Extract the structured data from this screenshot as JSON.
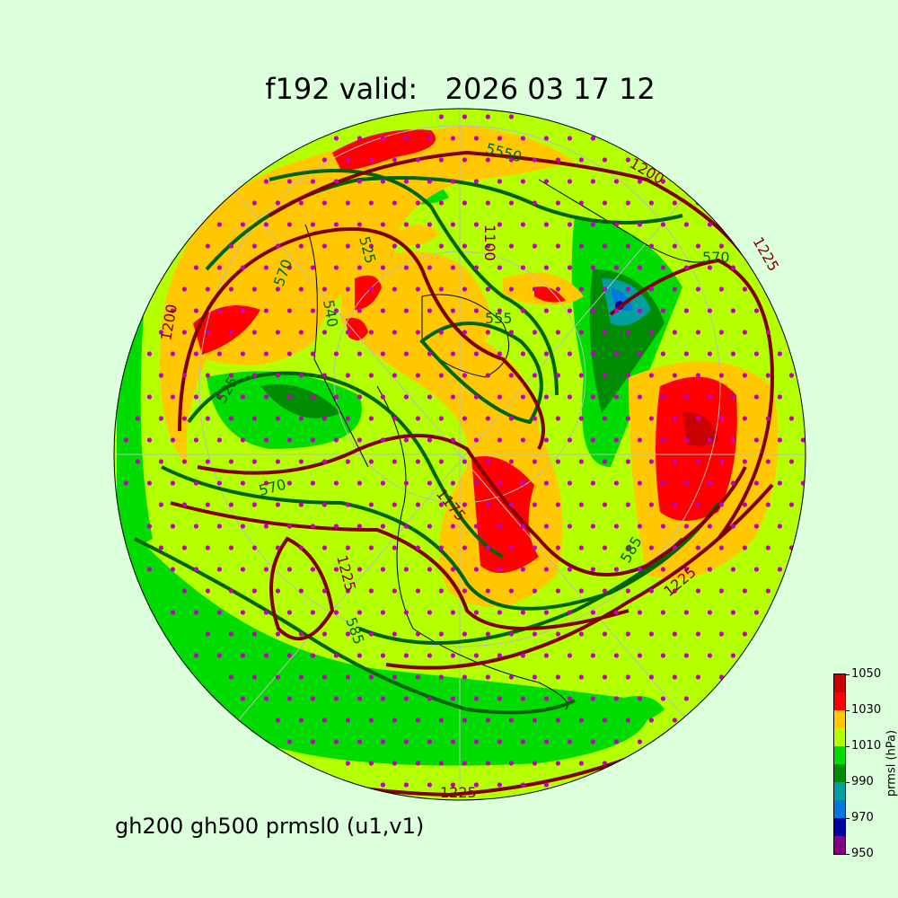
{
  "title": "f192 valid:   2026 03 17 12",
  "subtitle": "gh200 gh500 prmsl0 (u1,v1)",
  "colorbar": {
    "label": "prmsl (hPa)",
    "ticks": [
      "950",
      "970",
      "990",
      "1010",
      "1030",
      "1050"
    ],
    "levels": [
      950,
      960,
      970,
      980,
      990,
      1000,
      1010,
      1020,
      1030,
      1040,
      1050
    ],
    "colors": [
      "#800080",
      "#0000a0",
      "#0078e0",
      "#00a0a0",
      "#008c00",
      "#00dc00",
      "#b4ff00",
      "#ffc800",
      "#ff0000",
      "#c80000"
    ]
  },
  "map": {
    "projection": "orthographic north polar",
    "gh500_color": "#006400",
    "gh200_color": "#800000",
    "wind_dots_color": "#c000c0",
    "contour_labels": [
      {
        "text": "5550",
        "field": "gh500"
      },
      {
        "text": "1200",
        "field": "gh200"
      },
      {
        "text": "1100",
        "field": "gh200"
      },
      {
        "text": "525",
        "field": "gh500"
      },
      {
        "text": "570",
        "field": "gh500"
      },
      {
        "text": "540",
        "field": "gh500"
      },
      {
        "text": "555",
        "field": "gh500"
      },
      {
        "text": "1200",
        "field": "gh200"
      },
      {
        "text": "525",
        "field": "gh500"
      },
      {
        "text": "570",
        "field": "gh500"
      },
      {
        "text": "1175",
        "field": "gh200"
      },
      {
        "text": "1225",
        "field": "gh200"
      },
      {
        "text": "585",
        "field": "gh500"
      },
      {
        "text": "585",
        "field": "gh500"
      },
      {
        "text": "1225",
        "field": "gh200"
      },
      {
        "text": "1225",
        "field": "gh200"
      },
      {
        "text": "570",
        "field": "gh500"
      },
      {
        "text": "1225",
        "field": "gh200"
      }
    ]
  }
}
